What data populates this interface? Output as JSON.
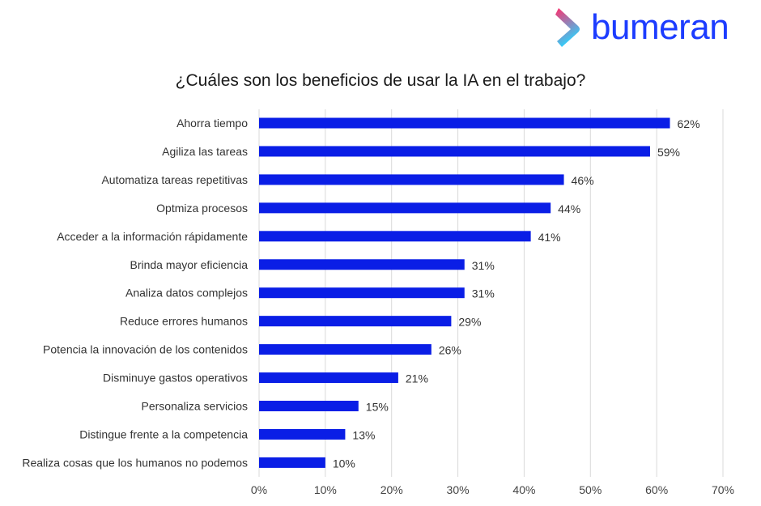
{
  "brand": {
    "name": "bumeran",
    "colors": {
      "text": "#1c3cff",
      "mark_top": "#ff2f6d",
      "mark_bottom": "#2ad4ff"
    }
  },
  "chart_data": {
    "type": "bar",
    "orientation": "horizontal",
    "title": "¿Cuáles son los beneficios de usar la IA en el trabajo?",
    "xlabel": "",
    "ylabel": "",
    "categories": [
      "Ahorra tiempo",
      "Agiliza las tareas",
      "Automatiza tareas repetitivas",
      "Optmiza procesos",
      "Acceder a la información rápidamente",
      "Brinda mayor eficiencia",
      "Analiza datos complejos",
      "Reduce errores humanos",
      "Potencia la innovación de los contenidos",
      "Disminuye gastos operativos",
      "Personaliza servicios",
      "Distingue frente a la competencia",
      "Realiza cosas que los humanos no podemos"
    ],
    "values": [
      62,
      59,
      46,
      44,
      41,
      31,
      31,
      29,
      26,
      21,
      15,
      13,
      10
    ],
    "value_labels": [
      "62%",
      "59%",
      "46%",
      "44%",
      "41%",
      "31%",
      "31%",
      "29%",
      "26%",
      "21%",
      "15%",
      "13%",
      "10%"
    ],
    "xlim": [
      0,
      70
    ],
    "xticks": [
      0,
      10,
      20,
      30,
      40,
      50,
      60,
      70
    ],
    "xtick_labels": [
      "0%",
      "10%",
      "20%",
      "30%",
      "40%",
      "50%",
      "60%",
      "70%"
    ],
    "grid": "vertical",
    "legend": "none",
    "bar_color": "#0a1ee6",
    "grid_color": "#d9d9d9"
  }
}
